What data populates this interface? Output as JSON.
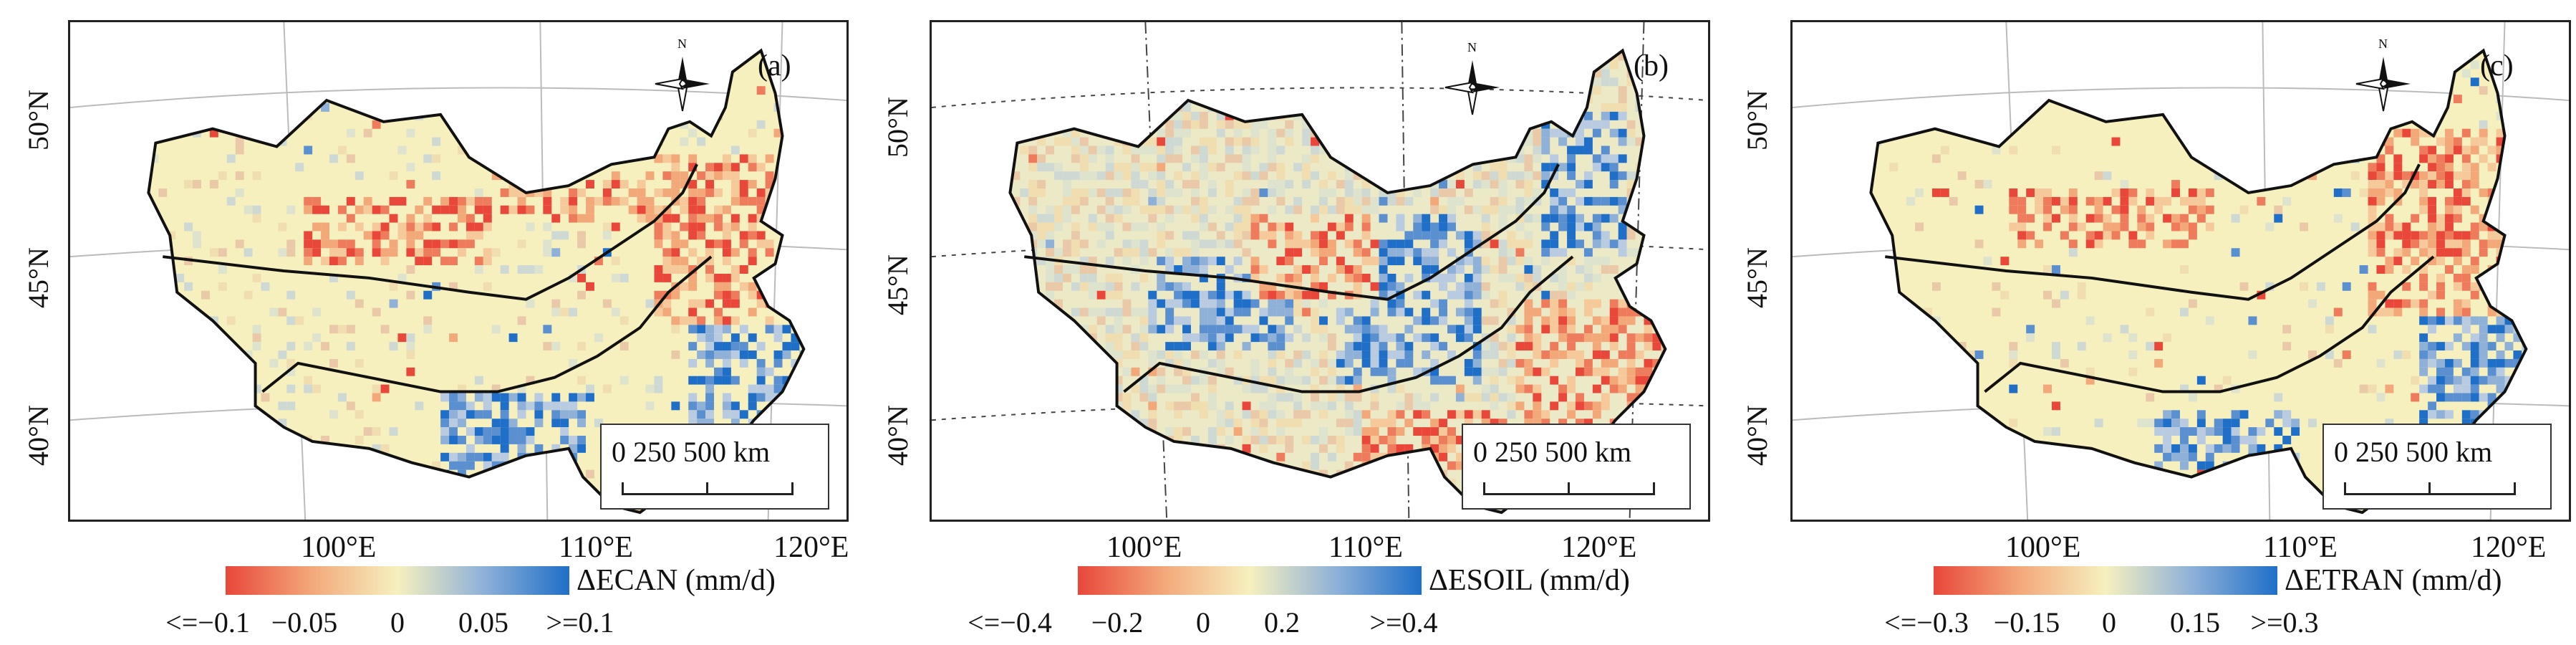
{
  "panels": [
    {
      "label": "(a)",
      "legend_title": "ΔECAN (mm/d)",
      "ticks": [
        "<=−0.1",
        "−0.05",
        "0",
        "0.05",
        ">=0.1"
      ],
      "lon_labels": [
        "100°E",
        "110°E",
        "120°E"
      ],
      "lat_labels": [
        "50°N",
        "45°N",
        "40°N"
      ],
      "scale_text": "0   250  500  km",
      "north_label": "N"
    },
    {
      "label": "(b)",
      "legend_title": "ΔESOIL (mm/d)",
      "ticks": [
        "<=−0.4",
        "−0.2",
        "0",
        "0.2",
        ">=0.4"
      ],
      "lon_labels": [
        "100°E",
        "110°E",
        "120°E"
      ],
      "lat_labels": [
        "50°N",
        "45°N",
        "40°N"
      ],
      "scale_text": "0   250  500  km",
      "north_label": "N"
    },
    {
      "label": "(c)",
      "legend_title": "ΔETRAN (mm/d)",
      "ticks": [
        "<=−0.3",
        "−0.15",
        "0",
        "0.15",
        ">=0.3"
      ],
      "lon_labels": [
        "100°E",
        "110°E",
        "120°E"
      ],
      "lat_labels": [
        "50°N",
        "45°N",
        "40°N"
      ],
      "scale_text": "0   250  500  km",
      "north_label": "N"
    }
  ],
  "colors": {
    "negative": "#e8473a",
    "neutral": "#f6f0bf",
    "positive": "#1f6fc8"
  }
}
